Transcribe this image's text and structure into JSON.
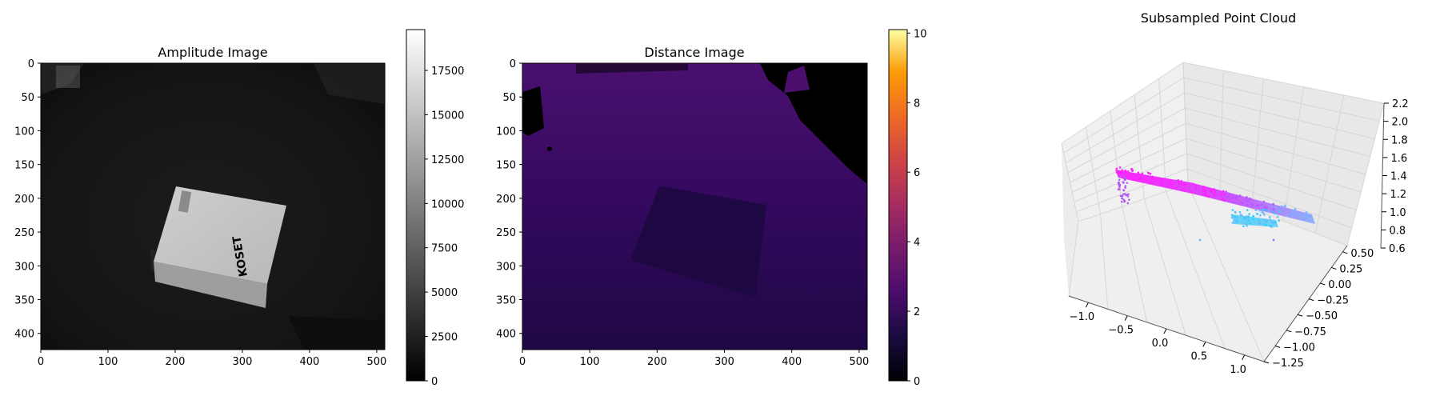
{
  "chart_data": [
    {
      "type": "heatmap",
      "title": "Amplitude Image",
      "image_width": 512,
      "image_height": 424,
      "colormap": "gray",
      "x_ticks": [
        "0",
        "100",
        "200",
        "300",
        "400",
        "500"
      ],
      "y_ticks": [
        "0",
        "50",
        "100",
        "150",
        "200",
        "250",
        "300",
        "350",
        "400"
      ],
      "xlim": [
        0,
        512
      ],
      "ylim": [
        424,
        0
      ],
      "colorbar": {
        "min": 0,
        "max": 19800,
        "ticks": [
          "0",
          "2500",
          "5000",
          "7500",
          "10000",
          "12500",
          "15000",
          "17500"
        ]
      },
      "box_label": "KOSET"
    },
    {
      "type": "heatmap",
      "title": "Distance Image",
      "image_width": 512,
      "image_height": 424,
      "colormap": "inferno",
      "x_ticks": [
        "0",
        "100",
        "200",
        "300",
        "400",
        "500"
      ],
      "y_ticks": [
        "0",
        "50",
        "100",
        "150",
        "200",
        "250",
        "300",
        "350",
        "400"
      ],
      "xlim": [
        0,
        512
      ],
      "ylim": [
        424,
        0
      ],
      "colorbar": {
        "min": 0,
        "max": 10.1,
        "ticks": [
          "0",
          "2",
          "4",
          "6",
          "8",
          "10"
        ]
      }
    },
    {
      "type": "scatter",
      "title": "Subsampled Point Cloud",
      "projection": "3d",
      "x_ticks": [
        "−1.0",
        "−0.5",
        "0.0",
        "0.5",
        "1.0"
      ],
      "y_ticks": [
        "−1.25",
        "−1.00",
        "−0.75",
        "−0.50",
        "−0.25",
        "0.00",
        "0.25",
        "0.50"
      ],
      "z_ticks": [
        "0.6",
        "0.8",
        "1.0",
        "1.2",
        "1.4",
        "1.6",
        "1.8",
        "2.0",
        "2.2"
      ],
      "xlim": [
        -1.25,
        1.25
      ],
      "ylim": [
        -1.25,
        0.6
      ],
      "zlim": [
        0.6,
        2.2
      ],
      "colormap": "cool",
      "grid": true
    }
  ]
}
